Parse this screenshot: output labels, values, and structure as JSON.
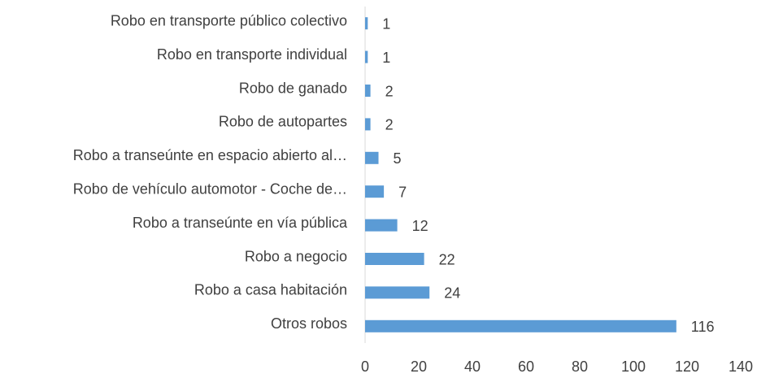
{
  "chart_data": {
    "type": "bar",
    "orientation": "horizontal",
    "categories": [
      "Robo en transporte público colectivo",
      "Robo en transporte individual",
      "Robo de ganado",
      "Robo de autopartes",
      "Robo a transeúnte en espacio abierto al…",
      "Robo de vehículo automotor - Coche de…",
      "Robo a transeúnte en vía pública",
      "Robo a negocio",
      "Robo a casa habitación",
      "Otros robos"
    ],
    "values": [
      1,
      1,
      2,
      2,
      5,
      7,
      12,
      22,
      24,
      116
    ],
    "color": "#5b9bd5",
    "xlim": [
      0,
      140
    ],
    "xticks": [
      0,
      20,
      40,
      60,
      80,
      100,
      120,
      140
    ],
    "grid": false
  }
}
